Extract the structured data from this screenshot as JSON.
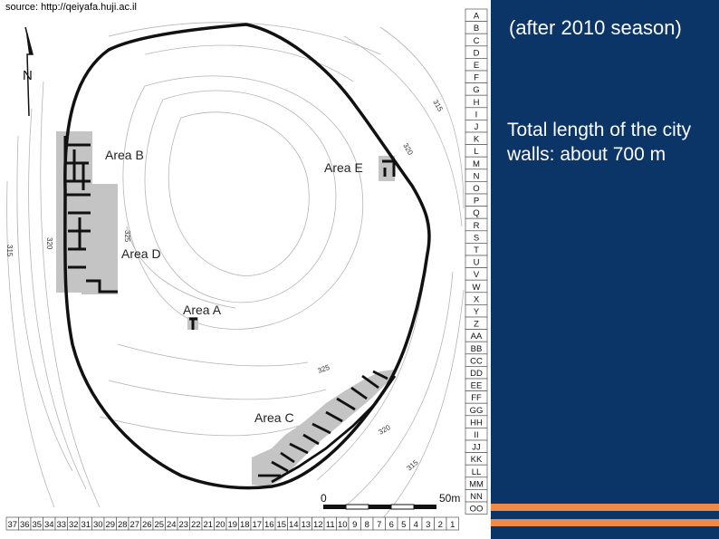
{
  "source_text": "source: http://qeiyafa.huji.ac.il",
  "north_label": "N",
  "areas": {
    "a": "Area A",
    "b": "Area B",
    "c": "Area C",
    "d": "Area D",
    "e": "Area E"
  },
  "scale": {
    "start": "0",
    "end": "50m"
  },
  "contour_labels": [
    "315",
    "320",
    "320",
    "315",
    "325",
    "325",
    "320",
    "315"
  ],
  "grid_letters": [
    "A",
    "B",
    "C",
    "D",
    "E",
    "F",
    "G",
    "H",
    "I",
    "J",
    "K",
    "L",
    "M",
    "N",
    "O",
    "P",
    "Q",
    "R",
    "S",
    "T",
    "U",
    "V",
    "W",
    "X",
    "Y",
    "Z",
    "AA",
    "BB",
    "CC",
    "DD",
    "EE",
    "FF",
    "GG",
    "HH",
    "II",
    "JJ",
    "KK",
    "LL",
    "MM",
    "NN",
    "OO"
  ],
  "grid_numbers": [
    "37",
    "36",
    "35",
    "34",
    "33",
    "32",
    "31",
    "30",
    "29",
    "28",
    "27",
    "26",
    "25",
    "24",
    "23",
    "22",
    "21",
    "20",
    "19",
    "18",
    "17",
    "16",
    "15",
    "14",
    "13",
    "12",
    "11",
    "10",
    "9",
    "8",
    "7",
    "6",
    "5",
    "4",
    "3",
    "2",
    "1"
  ],
  "panel": {
    "season": "(after 2010 season)",
    "wall_length": "Total length of the city walls: about 700 m"
  },
  "colors": {
    "panel_bg": "#0b3567",
    "stripe": "#f08a4b",
    "excavation": "#c4c4c4",
    "wall": "#111111"
  }
}
